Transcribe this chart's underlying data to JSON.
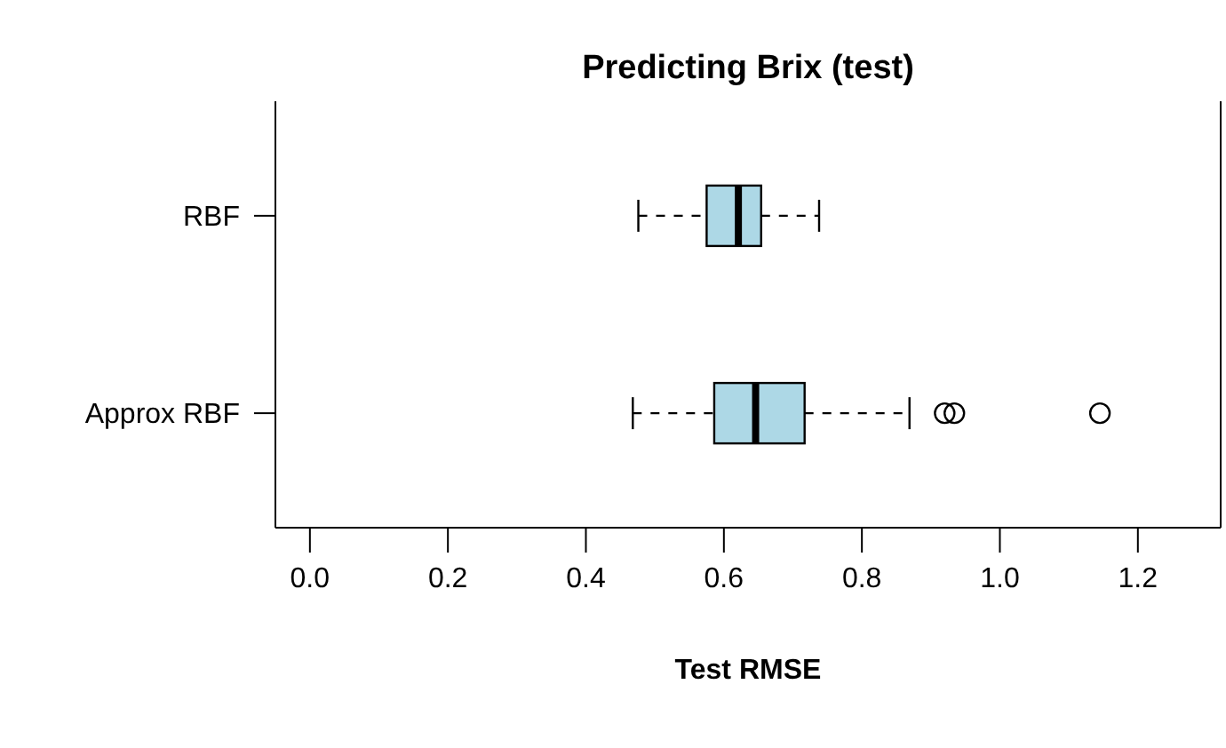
{
  "chart_data": {
    "type": "box",
    "orientation": "horizontal",
    "title": "Predicting Brix (test)",
    "xlabel": "Test RMSE",
    "categories": [
      "RBF",
      "Approx RBF"
    ],
    "color": "#add8e6",
    "boxes": [
      {
        "low": 0.476,
        "q1": 0.575,
        "median": 0.621,
        "q3": 0.654,
        "high": 0.738
      },
      {
        "low": 0.468,
        "q1": 0.586,
        "median": 0.646,
        "q3": 0.717,
        "high": 0.869,
        "outliers": [
          0.92,
          0.934,
          1.145
        ]
      }
    ],
    "xlim": [
      -0.05,
      1.32
    ],
    "xticks": [
      {
        "value": 0,
        "label": "0.0"
      },
      0.2,
      0.4,
      0.6,
      0.8,
      {
        "value": 1,
        "label": "1.0"
      },
      1.2
    ]
  }
}
